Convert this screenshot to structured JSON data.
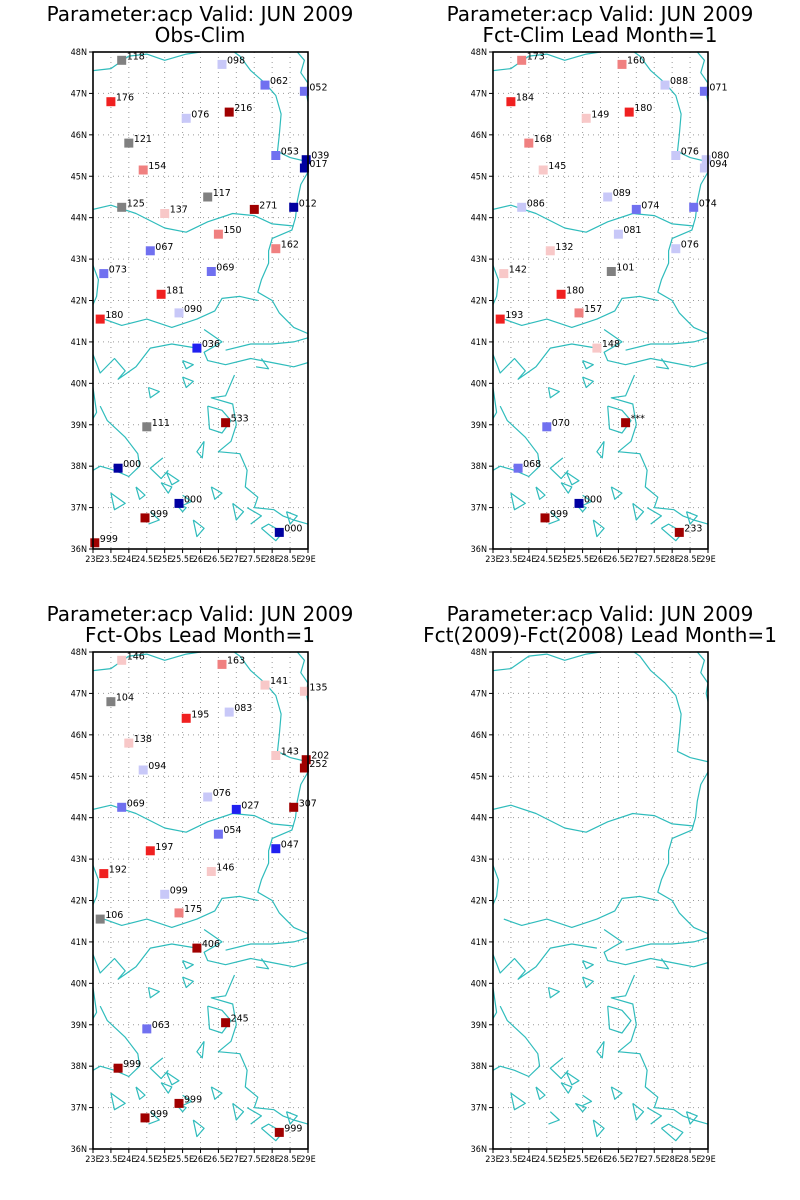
{
  "panels": [
    {
      "title_line1": "Parameter:acp Valid: JUN 2009",
      "title_line2": "Obs-Clim",
      "stations": [
        {
          "lon": 23.8,
          "lat": 47.8,
          "color": "#808080",
          "label": "118"
        },
        {
          "lon": 26.6,
          "lat": 47.7,
          "color": "#c8c8f8",
          "label": "098"
        },
        {
          "lon": 27.8,
          "lat": 47.2,
          "color": "#7070f0",
          "label": "062"
        },
        {
          "lon": 28.9,
          "lat": 47.05,
          "color": "#7070f0",
          "label": "052"
        },
        {
          "lon": 23.5,
          "lat": 46.8,
          "color": "#f02020",
          "label": "176"
        },
        {
          "lon": 25.6,
          "lat": 46.4,
          "color": "#c8c8f8",
          "label": "076"
        },
        {
          "lon": 26.8,
          "lat": 46.55,
          "color": "#a00000",
          "label": "216"
        },
        {
          "lon": 24.0,
          "lat": 45.8,
          "color": "#808080",
          "label": "121"
        },
        {
          "lon": 28.1,
          "lat": 45.5,
          "color": "#7070f0",
          "label": "053"
        },
        {
          "lon": 28.95,
          "lat": 45.4,
          "color": "#0000a0",
          "label": "039"
        },
        {
          "lon": 28.9,
          "lat": 45.2,
          "color": "#0000a0",
          "label": "017"
        },
        {
          "lon": 24.4,
          "lat": 45.15,
          "color": "#f08080",
          "label": "154"
        },
        {
          "lon": 26.2,
          "lat": 44.5,
          "color": "#808080",
          "label": "117"
        },
        {
          "lon": 23.8,
          "lat": 44.25,
          "color": "#808080",
          "label": "125"
        },
        {
          "lon": 25.0,
          "lat": 44.1,
          "color": "#f8c8c8",
          "label": "137"
        },
        {
          "lon": 27.5,
          "lat": 44.2,
          "color": "#a00000",
          "label": "271"
        },
        {
          "lon": 28.6,
          "lat": 44.25,
          "color": "#0000a0",
          "label": "012"
        },
        {
          "lon": 26.5,
          "lat": 43.6,
          "color": "#f08080",
          "label": "150"
        },
        {
          "lon": 24.6,
          "lat": 43.2,
          "color": "#7070f0",
          "label": "067"
        },
        {
          "lon": 28.1,
          "lat": 43.25,
          "color": "#f08080",
          "label": "162"
        },
        {
          "lon": 23.3,
          "lat": 42.65,
          "color": "#7070f0",
          "label": "073"
        },
        {
          "lon": 26.3,
          "lat": 42.7,
          "color": "#7070f0",
          "label": "069"
        },
        {
          "lon": 24.9,
          "lat": 42.15,
          "color": "#f02020",
          "label": "181"
        },
        {
          "lon": 25.4,
          "lat": 41.7,
          "color": "#c8c8f8",
          "label": "090"
        },
        {
          "lon": 23.2,
          "lat": 41.55,
          "color": "#f02020",
          "label": "180"
        },
        {
          "lon": 25.9,
          "lat": 40.85,
          "color": "#2020f0",
          "label": "036"
        },
        {
          "lon": 26.7,
          "lat": 39.05,
          "color": "#a00000",
          "label": "533"
        },
        {
          "lon": 24.5,
          "lat": 38.95,
          "color": "#808080",
          "label": "111"
        },
        {
          "lon": 23.7,
          "lat": 37.95,
          "color": "#0000a0",
          "label": "000"
        },
        {
          "lon": 25.4,
          "lat": 37.1,
          "color": "#0000a0",
          "label": "000"
        },
        {
          "lon": 24.45,
          "lat": 36.75,
          "color": "#a00000",
          "label": "999"
        },
        {
          "lon": 28.2,
          "lat": 36.4,
          "color": "#0000a0",
          "label": "000"
        },
        {
          "lon": 23.05,
          "lat": 36.15,
          "color": "#a00000",
          "label": "999"
        }
      ]
    },
    {
      "title_line1": "Parameter:acp Valid: JUN 2009",
      "title_line2": "Fct-Clim Lead Month=1",
      "stations": [
        {
          "lon": 23.8,
          "lat": 47.8,
          "color": "#f08080",
          "label": "173"
        },
        {
          "lon": 26.6,
          "lat": 47.7,
          "color": "#f08080",
          "label": "160"
        },
        {
          "lon": 27.8,
          "lat": 47.2,
          "color": "#c8c8f8",
          "label": "088"
        },
        {
          "lon": 28.9,
          "lat": 47.05,
          "color": "#7070f0",
          "label": "071"
        },
        {
          "lon": 23.5,
          "lat": 46.8,
          "color": "#f02020",
          "label": "184"
        },
        {
          "lon": 25.6,
          "lat": 46.4,
          "color": "#f8c8c8",
          "label": "149"
        },
        {
          "lon": 26.8,
          "lat": 46.55,
          "color": "#f02020",
          "label": "180"
        },
        {
          "lon": 24.0,
          "lat": 45.8,
          "color": "#f08080",
          "label": "168"
        },
        {
          "lon": 28.1,
          "lat": 45.5,
          "color": "#c8c8f8",
          "label": "076"
        },
        {
          "lon": 28.95,
          "lat": 45.4,
          "color": "#c8c8f8",
          "label": "080"
        },
        {
          "lon": 28.9,
          "lat": 45.2,
          "color": "#c8c8f8",
          "label": "094"
        },
        {
          "lon": 24.4,
          "lat": 45.15,
          "color": "#f8c8c8",
          "label": "145"
        },
        {
          "lon": 26.2,
          "lat": 44.5,
          "color": "#c8c8f8",
          "label": "089"
        },
        {
          "lon": 23.8,
          "lat": 44.25,
          "color": "#c8c8f8",
          "label": "086"
        },
        {
          "lon": 27.0,
          "lat": 44.2,
          "color": "#7070f0",
          "label": "074"
        },
        {
          "lon": 28.6,
          "lat": 44.25,
          "color": "#7070f0",
          "label": "074"
        },
        {
          "lon": 26.5,
          "lat": 43.6,
          "color": "#c8c8f8",
          "label": "081"
        },
        {
          "lon": 24.6,
          "lat": 43.2,
          "color": "#f8c8c8",
          "label": "132"
        },
        {
          "lon": 28.1,
          "lat": 43.25,
          "color": "#c8c8f8",
          "label": "076"
        },
        {
          "lon": 23.3,
          "lat": 42.65,
          "color": "#f8c8c8",
          "label": "142"
        },
        {
          "lon": 26.3,
          "lat": 42.7,
          "color": "#808080",
          "label": "101"
        },
        {
          "lon": 24.9,
          "lat": 42.15,
          "color": "#f02020",
          "label": "180"
        },
        {
          "lon": 25.4,
          "lat": 41.7,
          "color": "#f08080",
          "label": "157"
        },
        {
          "lon": 23.2,
          "lat": 41.55,
          "color": "#f02020",
          "label": "193"
        },
        {
          "lon": 25.9,
          "lat": 40.85,
          "color": "#f8c8c8",
          "label": "148"
        },
        {
          "lon": 26.7,
          "lat": 39.05,
          "color": "#a00000",
          "label": "***"
        },
        {
          "lon": 24.5,
          "lat": 38.95,
          "color": "#7070f0",
          "label": "070"
        },
        {
          "lon": 23.7,
          "lat": 37.95,
          "color": "#7070f0",
          "label": "068"
        },
        {
          "lon": 25.4,
          "lat": 37.1,
          "color": "#0000a0",
          "label": "000"
        },
        {
          "lon": 24.45,
          "lat": 36.75,
          "color": "#a00000",
          "label": "999"
        },
        {
          "lon": 28.2,
          "lat": 36.4,
          "color": "#a00000",
          "label": "233"
        }
      ]
    },
    {
      "title_line1": "Parameter:acp Valid: JUN 2009",
      "title_line2": "Fct-Obs Lead Month=1",
      "stations": [
        {
          "lon": 23.8,
          "lat": 47.8,
          "color": "#f8c8c8",
          "label": "146"
        },
        {
          "lon": 26.6,
          "lat": 47.7,
          "color": "#f08080",
          "label": "163"
        },
        {
          "lon": 27.8,
          "lat": 47.2,
          "color": "#f8c8c8",
          "label": "141"
        },
        {
          "lon": 28.9,
          "lat": 47.05,
          "color": "#f8c8c8",
          "label": "135"
        },
        {
          "lon": 23.5,
          "lat": 46.8,
          "color": "#808080",
          "label": "104"
        },
        {
          "lon": 25.6,
          "lat": 46.4,
          "color": "#f02020",
          "label": "195"
        },
        {
          "lon": 26.8,
          "lat": 46.55,
          "color": "#c8c8f8",
          "label": "083"
        },
        {
          "lon": 24.0,
          "lat": 45.8,
          "color": "#f8c8c8",
          "label": "138"
        },
        {
          "lon": 28.1,
          "lat": 45.5,
          "color": "#f8c8c8",
          "label": "143"
        },
        {
          "lon": 28.95,
          "lat": 45.4,
          "color": "#a00000",
          "label": "202"
        },
        {
          "lon": 28.9,
          "lat": 45.2,
          "color": "#a00000",
          "label": "252"
        },
        {
          "lon": 24.4,
          "lat": 45.15,
          "color": "#c8c8f8",
          "label": "094"
        },
        {
          "lon": 26.2,
          "lat": 44.5,
          "color": "#c8c8f8",
          "label": "076"
        },
        {
          "lon": 23.8,
          "lat": 44.25,
          "color": "#7070f0",
          "label": "069"
        },
        {
          "lon": 27.0,
          "lat": 44.2,
          "color": "#2020f0",
          "label": "027"
        },
        {
          "lon": 28.6,
          "lat": 44.25,
          "color": "#a00000",
          "label": "307"
        },
        {
          "lon": 26.5,
          "lat": 43.6,
          "color": "#7070f0",
          "label": "054"
        },
        {
          "lon": 24.6,
          "lat": 43.2,
          "color": "#f02020",
          "label": "197"
        },
        {
          "lon": 28.1,
          "lat": 43.25,
          "color": "#2020f0",
          "label": "047"
        },
        {
          "lon": 23.3,
          "lat": 42.65,
          "color": "#f02020",
          "label": "192"
        },
        {
          "lon": 26.3,
          "lat": 42.7,
          "color": "#f8c8c8",
          "label": "146"
        },
        {
          "lon": 25.0,
          "lat": 42.15,
          "color": "#c8c8f8",
          "label": "099"
        },
        {
          "lon": 25.4,
          "lat": 41.7,
          "color": "#f08080",
          "label": "175"
        },
        {
          "lon": 23.2,
          "lat": 41.55,
          "color": "#808080",
          "label": "106"
        },
        {
          "lon": 25.9,
          "lat": 40.85,
          "color": "#a00000",
          "label": "406"
        },
        {
          "lon": 26.7,
          "lat": 39.05,
          "color": "#a00000",
          "label": "245"
        },
        {
          "lon": 24.5,
          "lat": 38.9,
          "color": "#7070f0",
          "label": "063"
        },
        {
          "lon": 23.7,
          "lat": 37.95,
          "color": "#a00000",
          "label": "999"
        },
        {
          "lon": 25.4,
          "lat": 37.1,
          "color": "#a00000",
          "label": "999"
        },
        {
          "lon": 24.45,
          "lat": 36.75,
          "color": "#a00000",
          "label": "999"
        },
        {
          "lon": 28.2,
          "lat": 36.4,
          "color": "#a00000",
          "label": "999"
        }
      ]
    },
    {
      "title_line1": "Parameter:acp Valid: JUN 2009",
      "title_line2": "Fct(2009)-Fct(2008) Lead Month=1",
      "stations": []
    }
  ],
  "axes": {
    "lon_ticks": [
      {
        "value": 23,
        "label": "23E"
      },
      {
        "value": 23.5,
        "label": "23.5E"
      },
      {
        "value": 24,
        "label": "24E"
      },
      {
        "value": 24.5,
        "label": "24.5E"
      },
      {
        "value": 25,
        "label": "25E"
      },
      {
        "value": 25.5,
        "label": "25.5E"
      },
      {
        "value": 26,
        "label": "26E"
      },
      {
        "value": 26.5,
        "label": "26.5E"
      },
      {
        "value": 27,
        "label": "27E"
      },
      {
        "value": 27.5,
        "label": "27.5E"
      },
      {
        "value": 28,
        "label": "28E"
      },
      {
        "value": 28.5,
        "label": "28.5E"
      },
      {
        "value": 29,
        "label": "29E"
      }
    ],
    "lat_ticks": [
      {
        "value": 36,
        "label": "36N"
      },
      {
        "value": 37,
        "label": "37N"
      },
      {
        "value": 38,
        "label": "38N"
      },
      {
        "value": 39,
        "label": "39N"
      },
      {
        "value": 40,
        "label": "40N"
      },
      {
        "value": 41,
        "label": "41N"
      },
      {
        "value": 42,
        "label": "42N"
      },
      {
        "value": 43,
        "label": "43N"
      },
      {
        "value": 44,
        "label": "44N"
      },
      {
        "value": 45,
        "label": "45N"
      },
      {
        "value": 46,
        "label": "46N"
      },
      {
        "value": 47,
        "label": "47N"
      },
      {
        "value": 48,
        "label": "48N"
      }
    ],
    "lon_range": [
      23,
      29
    ],
    "lat_range": [
      36,
      48
    ]
  },
  "colors": {
    "coastline": "#2fbcbc",
    "grid": "#9a9a9a",
    "frame": "#000000"
  }
}
